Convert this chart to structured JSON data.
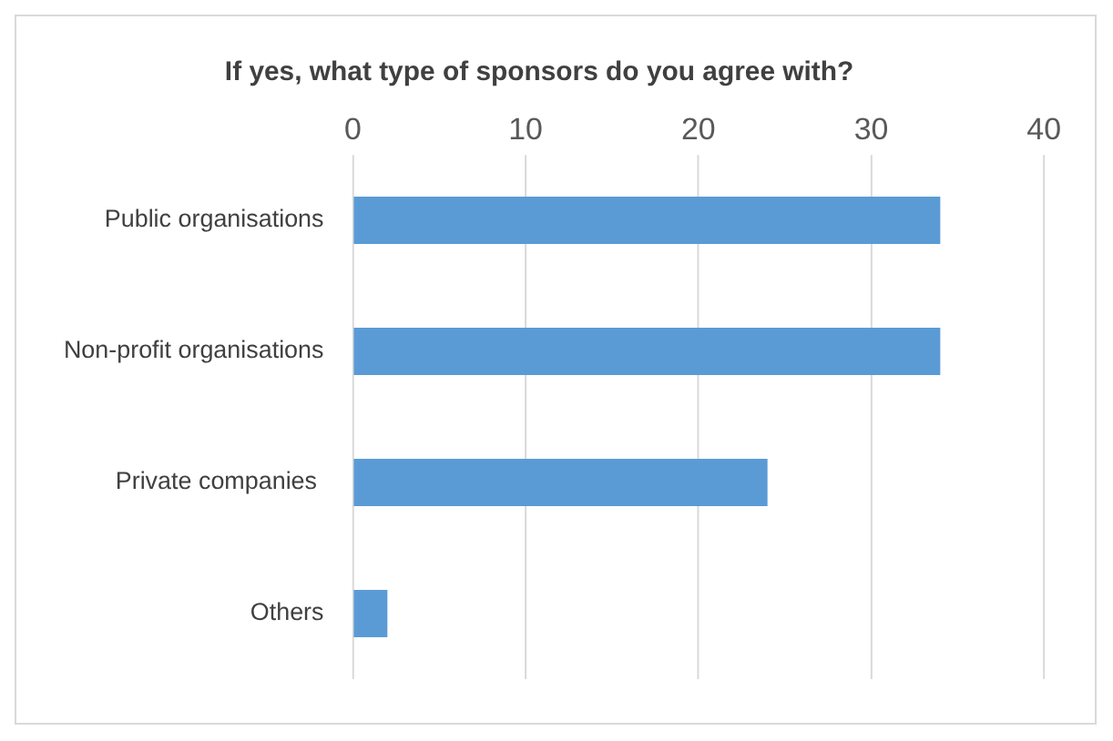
{
  "chart_data": {
    "type": "bar",
    "orientation": "horizontal",
    "title": "If yes, what type of sponsors do you agree with?",
    "categories": [
      "Public organisations",
      "Non-profit organisations",
      "Private companies ",
      "Others"
    ],
    "values": [
      34,
      34,
      24,
      2
    ],
    "color": "#5b9bd5",
    "xlim": [
      0,
      40
    ],
    "xticks": [
      0,
      10,
      20,
      30,
      40
    ],
    "grid": "x",
    "legend": false
  }
}
